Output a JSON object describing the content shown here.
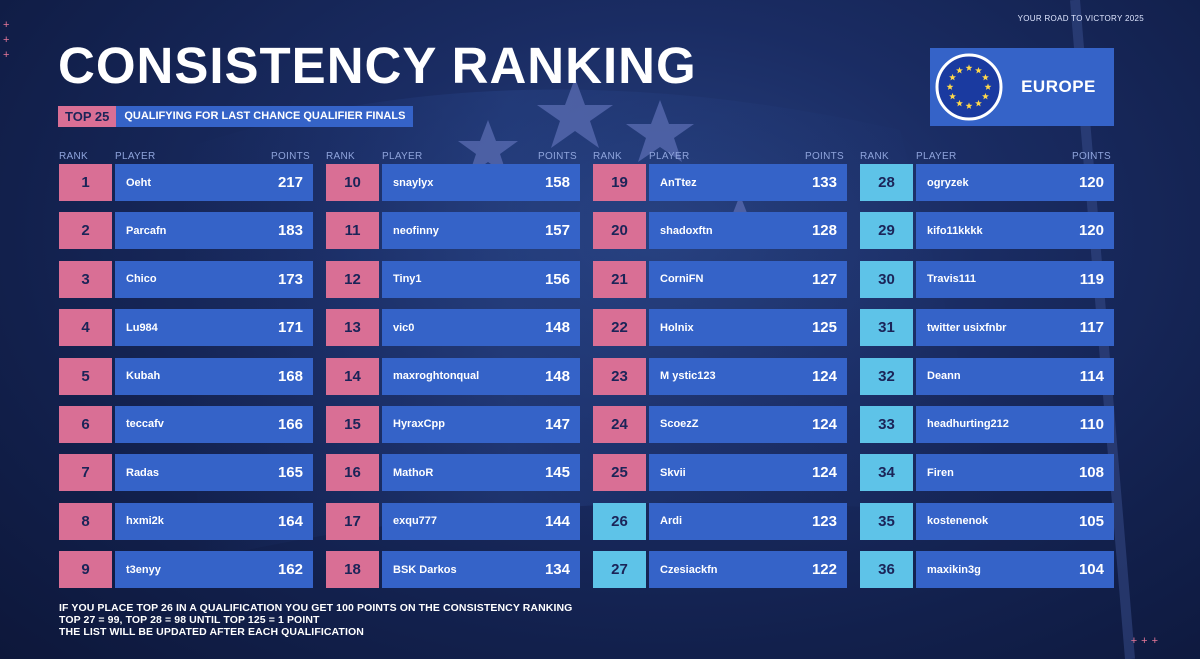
{
  "tagline": "YOUR ROAD TO VICTORY 2025",
  "title": "CONSISTENCY RANKING",
  "badge": "TOP 25",
  "subtitle": "QUALIFYING FOR LAST CHANCE QUALIFIER FINALS",
  "region": "EUROPE",
  "headers": {
    "rank": "RANK",
    "player": "PLAYER",
    "points": "POINTS"
  },
  "colors": {
    "qualified": "#d96f95",
    "not_qualified": "#5ec3e8",
    "bar": "#3563c8"
  },
  "columns": [
    [
      {
        "rank": "1",
        "player": "Oeht",
        "points": "217",
        "status": "qualified"
      },
      {
        "rank": "2",
        "player": "Parcafn",
        "points": "183",
        "status": "qualified"
      },
      {
        "rank": "3",
        "player": "Chico",
        "points": "173",
        "status": "qualified"
      },
      {
        "rank": "4",
        "player": "Lu984",
        "points": "171",
        "status": "qualified"
      },
      {
        "rank": "5",
        "player": "Kubah",
        "points": "168",
        "status": "qualified"
      },
      {
        "rank": "6",
        "player": "teccafv",
        "points": "166",
        "status": "qualified"
      },
      {
        "rank": "7",
        "player": "Radas",
        "points": "165",
        "status": "qualified"
      },
      {
        "rank": "8",
        "player": "hxmi2k",
        "points": "164",
        "status": "qualified"
      },
      {
        "rank": "9",
        "player": "t3enyy",
        "points": "162",
        "status": "qualified"
      }
    ],
    [
      {
        "rank": "10",
        "player": "snaylyx",
        "points": "158",
        "status": "qualified"
      },
      {
        "rank": "11",
        "player": "neofinny",
        "points": "157",
        "status": "qualified"
      },
      {
        "rank": "12",
        "player": "Tiny1",
        "points": "156",
        "status": "qualified"
      },
      {
        "rank": "13",
        "player": "vic0",
        "points": "148",
        "status": "qualified"
      },
      {
        "rank": "14",
        "player": "maxroghtonqual",
        "points": "148",
        "status": "qualified"
      },
      {
        "rank": "15",
        "player": "HyraxCpp",
        "points": "147",
        "status": "qualified"
      },
      {
        "rank": "16",
        "player": "MathoR",
        "points": "145",
        "status": "qualified"
      },
      {
        "rank": "17",
        "player": "exqu777",
        "points": "144",
        "status": "qualified"
      },
      {
        "rank": "18",
        "player": "BSK Darkos",
        "points": "134",
        "status": "qualified"
      }
    ],
    [
      {
        "rank": "19",
        "player": "AnTtez",
        "points": "133",
        "status": "qualified"
      },
      {
        "rank": "20",
        "player": "shadoxftn",
        "points": "128",
        "status": "qualified"
      },
      {
        "rank": "21",
        "player": "CorniFN",
        "points": "127",
        "status": "qualified"
      },
      {
        "rank": "22",
        "player": "Holnix",
        "points": "125",
        "status": "qualified"
      },
      {
        "rank": "23",
        "player": "M ystic123",
        "points": "124",
        "status": "qualified"
      },
      {
        "rank": "24",
        "player": "ScoezZ",
        "points": "124",
        "status": "qualified"
      },
      {
        "rank": "25",
        "player": "Skvii",
        "points": "124",
        "status": "qualified"
      },
      {
        "rank": "26",
        "player": "Ardi",
        "points": "123",
        "status": "not_qualified"
      },
      {
        "rank": "27",
        "player": "Czesiackfn",
        "points": "122",
        "status": "not_qualified"
      }
    ],
    [
      {
        "rank": "28",
        "player": "ogryzek",
        "points": "120",
        "status": "not_qualified"
      },
      {
        "rank": "29",
        "player": "kifo11kkkk",
        "points": "120",
        "status": "not_qualified"
      },
      {
        "rank": "30",
        "player": "Travis111",
        "points": "119",
        "status": "not_qualified"
      },
      {
        "rank": "31",
        "player": "twitter usixfnbr",
        "points": "117",
        "status": "not_qualified"
      },
      {
        "rank": "32",
        "player": "Deann",
        "points": "114",
        "status": "not_qualified"
      },
      {
        "rank": "33",
        "player": "headhurting212",
        "points": "110",
        "status": "not_qualified"
      },
      {
        "rank": "34",
        "player": "Firen",
        "points": "108",
        "status": "not_qualified"
      },
      {
        "rank": "35",
        "player": "kostenenok",
        "points": "105",
        "status": "not_qualified"
      },
      {
        "rank": "36",
        "player": "maxikin3g",
        "points": "104",
        "status": "not_qualified"
      }
    ]
  ],
  "footer": [
    "IF YOU PLACE TOP 26 IN A QUALIFICATION YOU GET 100 POINTS ON THE CONSISTENCY RANKING",
    "TOP 27 = 99, TOP 28 = 98 UNTIL TOP 125 = 1 POINT",
    "THE LIST WILL BE UPDATED AFTER EACH QUALIFICATION"
  ]
}
